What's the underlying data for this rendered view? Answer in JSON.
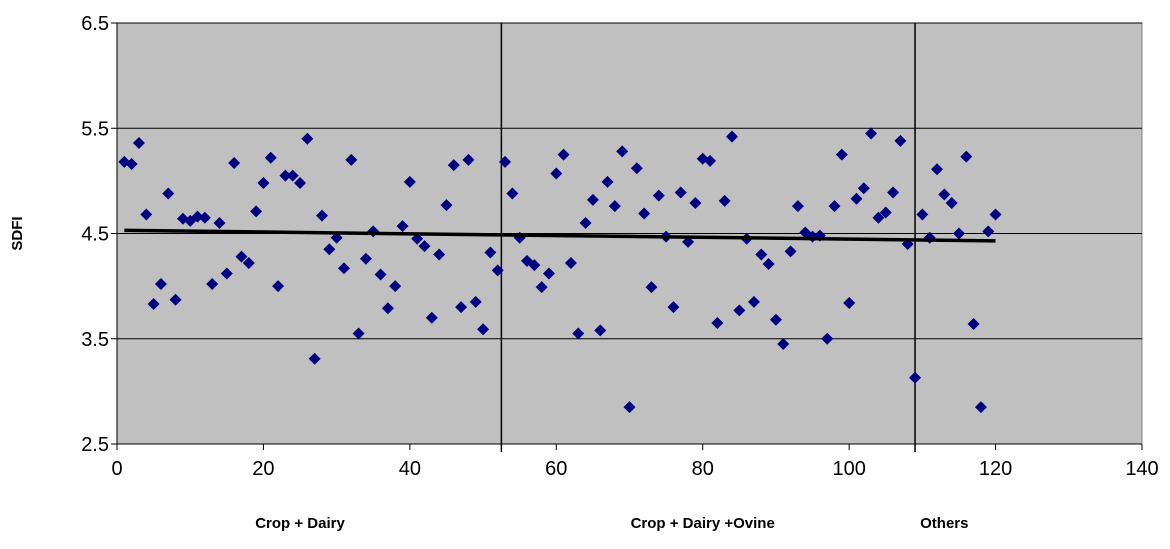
{
  "chart_data": {
    "type": "scatter",
    "title": "",
    "xlabel": "",
    "ylabel": "SDFI",
    "xlim": [
      0,
      140
    ],
    "ylim": [
      2.5,
      6.5
    ],
    "x_ticks": [
      "0",
      "20",
      "40",
      "60",
      "80",
      "100",
      "120",
      "140"
    ],
    "y_ticks": [
      "2.5",
      "3.5",
      "4.5",
      "5.5",
      "6.5"
    ],
    "grid": "horizontal",
    "legend": "none",
    "colors": {
      "plot_background": "#c0c0c0",
      "marker": "#000080",
      "trendline": "#000000",
      "gridline": "#000000"
    },
    "group_dividers": [
      52.5,
      109
    ],
    "group_labels": [
      {
        "label": "Crop + Dairy",
        "x": 25
      },
      {
        "label": "Crop + Dairy +Ovine",
        "x": 80
      },
      {
        "label": "Others",
        "x": 113
      }
    ],
    "trendline": {
      "x": [
        1,
        120
      ],
      "y": [
        4.53,
        4.43
      ]
    },
    "series": [
      {
        "values": [
          [
            1,
            5.18
          ],
          [
            2,
            5.16
          ],
          [
            3,
            5.36
          ],
          [
            4,
            4.68
          ],
          [
            5,
            3.83
          ],
          [
            6,
            4.02
          ],
          [
            7,
            4.88
          ],
          [
            8,
            3.87
          ],
          [
            9,
            4.64
          ],
          [
            10,
            4.62
          ],
          [
            11,
            4.66
          ],
          [
            12,
            4.65
          ],
          [
            13,
            4.02
          ],
          [
            14,
            4.6
          ],
          [
            15,
            4.12
          ],
          [
            16,
            5.17
          ],
          [
            17,
            4.28
          ],
          [
            18,
            4.22
          ],
          [
            19,
            4.71
          ],
          [
            20,
            4.98
          ],
          [
            21,
            5.22
          ],
          [
            22,
            4.0
          ],
          [
            23,
            5.05
          ],
          [
            24,
            5.05
          ],
          [
            25,
            4.98
          ],
          [
            26,
            5.4
          ],
          [
            27,
            3.31
          ],
          [
            28,
            4.67
          ],
          [
            29,
            4.35
          ],
          [
            30,
            4.46
          ],
          [
            31,
            4.17
          ],
          [
            32,
            5.2
          ],
          [
            33,
            3.55
          ],
          [
            34,
            4.26
          ],
          [
            35,
            4.52
          ],
          [
            36,
            4.11
          ],
          [
            37,
            3.79
          ],
          [
            38,
            4.0
          ],
          [
            39,
            4.57
          ],
          [
            40,
            4.99
          ],
          [
            41,
            4.45
          ],
          [
            42,
            4.38
          ],
          [
            43,
            3.7
          ],
          [
            44,
            4.3
          ],
          [
            45,
            4.77
          ],
          [
            46,
            5.15
          ],
          [
            47,
            3.8
          ],
          [
            48,
            5.2
          ],
          [
            49,
            3.85
          ],
          [
            50,
            3.59
          ],
          [
            51,
            4.32
          ],
          [
            52,
            4.15
          ],
          [
            53,
            5.18
          ],
          [
            54,
            4.88
          ],
          [
            55,
            4.46
          ],
          [
            56,
            4.24
          ],
          [
            57,
            4.2
          ],
          [
            58,
            3.99
          ],
          [
            59,
            4.12
          ],
          [
            60,
            5.07
          ],
          [
            61,
            5.25
          ],
          [
            62,
            4.22
          ],
          [
            63,
            3.55
          ],
          [
            64,
            4.6
          ],
          [
            65,
            4.82
          ],
          [
            66,
            3.58
          ],
          [
            67,
            4.99
          ],
          [
            68,
            4.76
          ],
          [
            69,
            5.28
          ],
          [
            70,
            2.85
          ],
          [
            71,
            5.12
          ],
          [
            72,
            4.69
          ],
          [
            73,
            3.99
          ],
          [
            74,
            4.86
          ],
          [
            75,
            4.47
          ],
          [
            76,
            3.8
          ],
          [
            77,
            4.89
          ],
          [
            78,
            4.42
          ],
          [
            79,
            4.79
          ],
          [
            80,
            5.21
          ],
          [
            81,
            5.19
          ],
          [
            82,
            3.65
          ],
          [
            83,
            4.81
          ],
          [
            84,
            5.42
          ],
          [
            85,
            3.77
          ],
          [
            86,
            4.45
          ],
          [
            87,
            3.85
          ],
          [
            88,
            4.3
          ],
          [
            89,
            4.21
          ],
          [
            90,
            3.68
          ],
          [
            91,
            3.45
          ],
          [
            92,
            4.33
          ],
          [
            93,
            4.76
          ],
          [
            94,
            4.51
          ],
          [
            95,
            4.47
          ],
          [
            96,
            4.48
          ],
          [
            97,
            3.5
          ],
          [
            98,
            4.76
          ],
          [
            99,
            5.25
          ],
          [
            100,
            3.84
          ],
          [
            101,
            4.83
          ],
          [
            102,
            4.93
          ],
          [
            103,
            5.45
          ],
          [
            104,
            4.65
          ],
          [
            105,
            4.7
          ],
          [
            106,
            4.89
          ],
          [
            107,
            5.38
          ],
          [
            108,
            4.4
          ],
          [
            109,
            3.13
          ],
          [
            110,
            4.68
          ],
          [
            111,
            4.46
          ],
          [
            112,
            5.11
          ],
          [
            113,
            4.87
          ],
          [
            114,
            4.79
          ],
          [
            115,
            4.5
          ],
          [
            116,
            5.23
          ],
          [
            117,
            3.64
          ],
          [
            118,
            2.85
          ],
          [
            119,
            4.52
          ],
          [
            120,
            4.68
          ]
        ]
      }
    ]
  }
}
